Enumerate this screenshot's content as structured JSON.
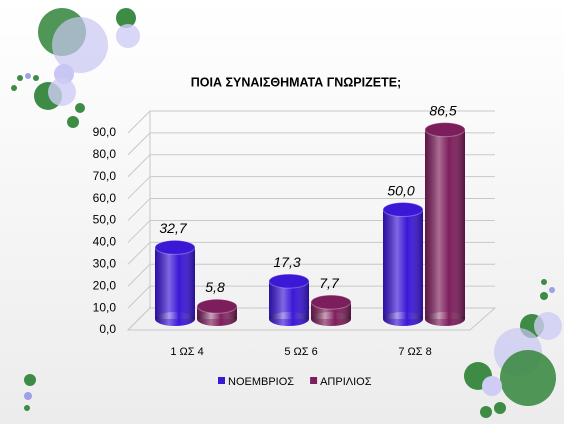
{
  "chart_data": {
    "type": "bar3d",
    "title": "ΠΟΙΑ ΣΥΝΑΙΣΘΗΜΑΤΑ ΓΝΩΡΙΖΕΤΕ;",
    "categories": [
      "1 ΩΣ 4",
      "5 ΩΣ 6",
      "7 ΩΣ 8"
    ],
    "series": [
      {
        "name": "ΝΟΕΜΒΡΙΟΣ",
        "color": "#3b17d6",
        "values": [
          32.7,
          17.3,
          50.0
        ],
        "value_labels": [
          "32,7",
          "17,3",
          "50,0"
        ]
      },
      {
        "name": "ΑΠΡΙΛΙΟΣ",
        "color": "#7d1e5c",
        "values": [
          5.8,
          7.7,
          86.5
        ],
        "value_labels": [
          "5,8",
          "7,7",
          "86,5"
        ]
      }
    ],
    "ylim": [
      0,
      90
    ],
    "yticks": [
      {
        "value": 0,
        "label": "0,0"
      },
      {
        "value": 10,
        "label": "10,0"
      },
      {
        "value": 20,
        "label": "20,0"
      },
      {
        "value": 30,
        "label": "30,0"
      },
      {
        "value": 40,
        "label": "40,0"
      },
      {
        "value": 50,
        "label": "50,0"
      },
      {
        "value": 60,
        "label": "60,0"
      },
      {
        "value": 70,
        "label": "70,0"
      },
      {
        "value": 80,
        "label": "80,0"
      },
      {
        "value": 90,
        "label": "90,0"
      }
    ],
    "grid": true,
    "legend": "bottom"
  }
}
